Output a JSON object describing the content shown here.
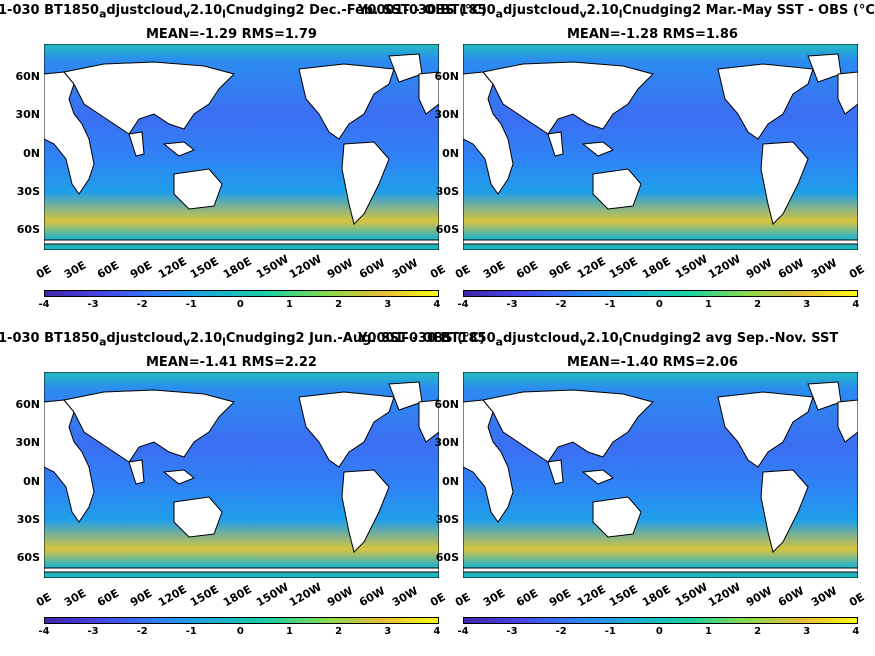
{
  "panels": [
    {
      "title": "1-030 BT1850",
      "sub1": "a",
      "mid": "djustcloud",
      "sub2": "v",
      "mid2": "2.10",
      "sub3": "l",
      "rest": "Cnudging2  Dec.-Feb. SST - OBS (°C)",
      "stat": "MEAN=-1.29   RMS=1.79"
    },
    {
      "title": "Y0001-030 BT1850",
      "sub1": "a",
      "mid": "djustcloud",
      "sub2": "v",
      "mid2": "2.10",
      "sub3": "l",
      "rest": "Cnudging2 Mar.-May SST - OBS (°C)",
      "stat": "MEAN=-1.28   RMS=1.86"
    },
    {
      "title": "1-030 BT1850",
      "sub1": "a",
      "mid": "djustcloud",
      "sub2": "v",
      "mid2": "2.10",
      "sub3": "l",
      "rest": "Cnudging2 Jun.-Aug. SST - OBS (°C)",
      "stat": "MEAN=-1.41   RMS=2.22"
    },
    {
      "title": "Y0001-030 BT1850",
      "sub1": "a",
      "mid": "djustcloud",
      "sub2": "v",
      "mid2": "2.10",
      "sub3": "l",
      "rest": "Cnudging2 avg Sep.-Nov. SST",
      "stat": "MEAN=-1.40   RMS=2.06"
    }
  ],
  "ylabels": [
    "60N",
    "30N",
    "0N",
    "30S",
    "60S"
  ],
  "xlabels": [
    "0E",
    "30E",
    "60E",
    "90E",
    "120E",
    "150E",
    "180E",
    "150W",
    "120W",
    "90W",
    "60W",
    "30W",
    "0E"
  ],
  "cblabels": [
    "-4",
    "-3",
    "-2",
    "-1",
    "0",
    "1",
    "2",
    "3",
    "4"
  ]
}
